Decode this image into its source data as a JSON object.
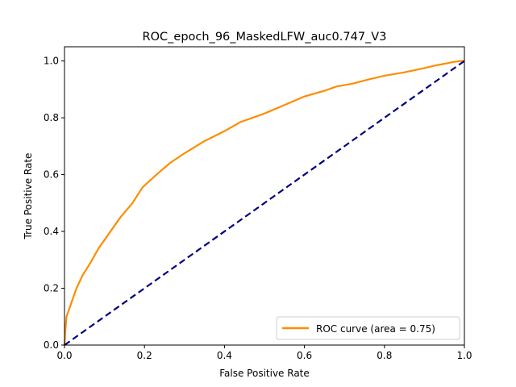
{
  "chart_data": {
    "type": "line",
    "title": "ROC_epoch_96_MaskedLFW_auc0.747_V3",
    "xlabel": "False Positive Rate",
    "ylabel": "True Positive Rate",
    "xlim": [
      0.0,
      1.0
    ],
    "ylim": [
      0.0,
      1.05
    ],
    "x_ticks": [
      "0.0",
      "0.2",
      "0.4",
      "0.6",
      "0.8",
      "1.0"
    ],
    "y_ticks": [
      "0.0",
      "0.2",
      "0.4",
      "0.6",
      "0.8",
      "1.0"
    ],
    "grid": false,
    "legend_position": "lower right",
    "series": [
      {
        "name": "ROC curve (area = 0.75)",
        "color": "#ff8c00",
        "style": "solid",
        "x": [
          0.0,
          0.002,
          0.005,
          0.01,
          0.02,
          0.03,
          0.045,
          0.065,
          0.085,
          0.11,
          0.14,
          0.17,
          0.195,
          0.23,
          0.265,
          0.3,
          0.35,
          0.4,
          0.44,
          0.5,
          0.55,
          0.6,
          0.65,
          0.68,
          0.72,
          0.76,
          0.8,
          0.85,
          0.9,
          0.93,
          0.95,
          0.97,
          0.99,
          1.0
        ],
        "y": [
          0.0,
          0.05,
          0.1,
          0.12,
          0.16,
          0.2,
          0.245,
          0.29,
          0.34,
          0.39,
          0.45,
          0.5,
          0.555,
          0.6,
          0.642,
          0.675,
          0.718,
          0.753,
          0.785,
          0.815,
          0.845,
          0.875,
          0.895,
          0.91,
          0.92,
          0.935,
          0.948,
          0.96,
          0.975,
          0.985,
          0.99,
          0.996,
          1.0,
          1.0
        ]
      },
      {
        "name": "",
        "color": "#000080",
        "style": "dashed",
        "x": [
          0.0,
          1.0
        ],
        "y": [
          0.0,
          1.0
        ]
      }
    ]
  }
}
